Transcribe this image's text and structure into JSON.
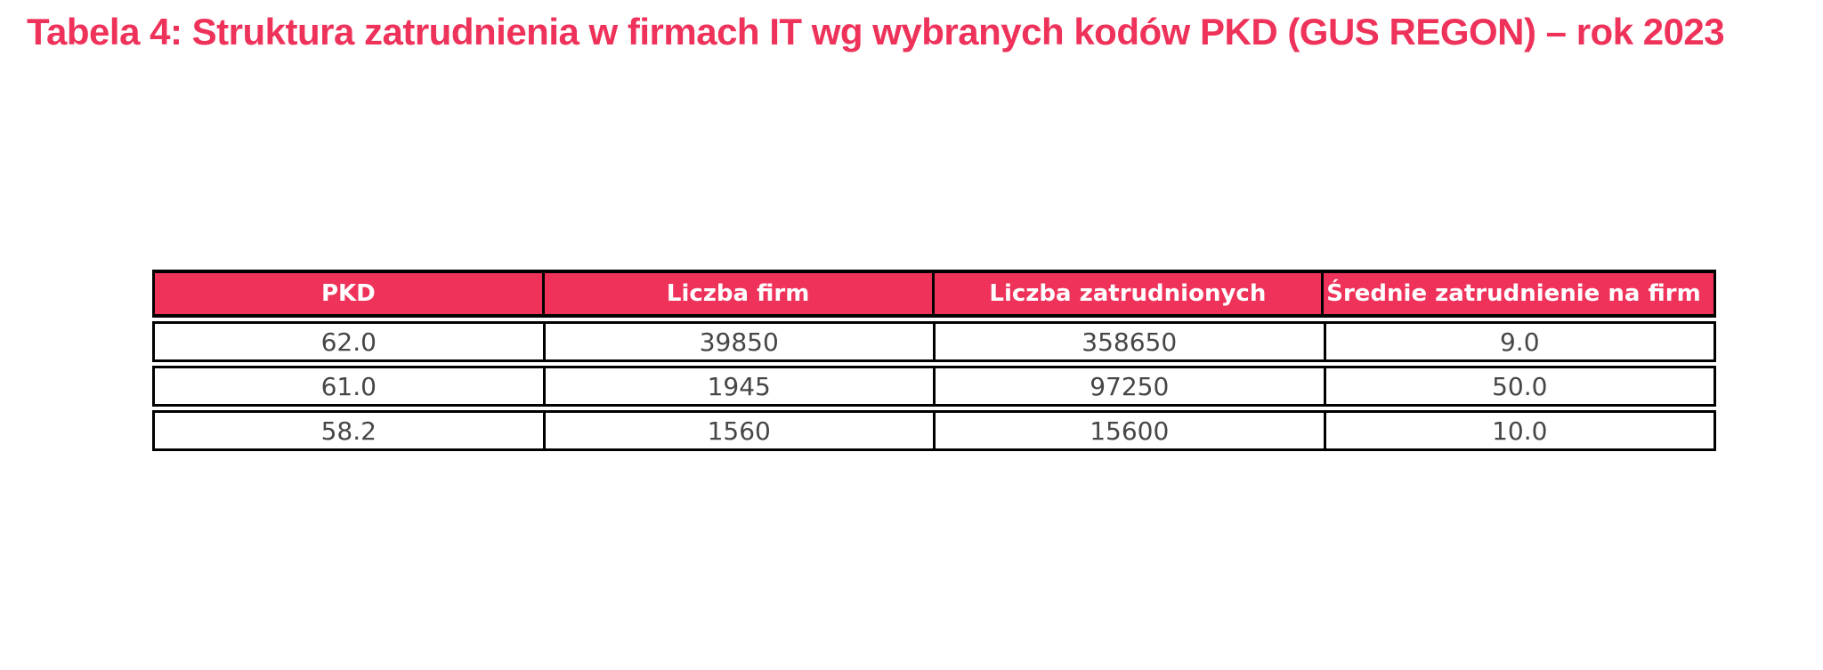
{
  "colors": {
    "accent": "#EE325A",
    "header-text": "#FFFFFF",
    "cell-text": "#464646",
    "border": "#000000"
  },
  "chart_data": {
    "type": "table",
    "title": "Tabela 4: Struktura zatrudnienia w firmach IT wg wybranych kodów PKD (GUS REGON) – rok 2023",
    "columns": [
      "PKD",
      "Liczba firm",
      "Liczba zatrudnionych",
      "Średnie zatrudnienie na firm"
    ],
    "rows": [
      [
        "62.0",
        "39850",
        "358650",
        "9.0"
      ],
      [
        "61.0",
        "1945",
        "97250",
        "50.0"
      ],
      [
        "58.2",
        "1560",
        "15600",
        "10.0"
      ]
    ],
    "layout": {
      "header_fill": "#EE325A",
      "header_text_color": "#FFFFFF",
      "grid": "solid black cell borders with small gaps between rows",
      "legend": "none",
      "note_col4_clipped_at_table_edge": true
    }
  }
}
